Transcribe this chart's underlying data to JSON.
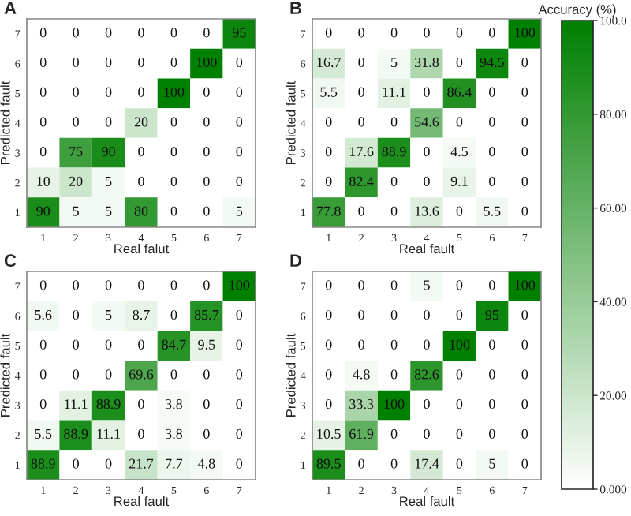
{
  "chart_data": [
    {
      "type": "heatmap",
      "title": "A",
      "xlabel": "Real falut",
      "ylabel": "Predicted fault",
      "categories": [
        "1",
        "2",
        "3",
        "4",
        "5",
        "6",
        "7"
      ],
      "y_categories": [
        "7",
        "6",
        "5",
        "4",
        "3",
        "2",
        "1"
      ],
      "data_labels": true,
      "cells": [
        [
          0,
          0,
          0,
          0,
          0,
          0,
          95
        ],
        [
          0,
          0,
          0,
          0,
          0,
          100,
          0
        ],
        [
          0,
          0,
          0,
          0,
          100,
          0,
          0
        ],
        [
          0,
          0,
          0,
          20,
          0,
          0,
          0
        ],
        [
          0,
          75,
          90,
          0,
          0,
          0,
          0
        ],
        [
          10,
          20,
          5,
          0,
          0,
          0,
          0
        ],
        [
          90,
          5,
          5,
          80,
          0,
          0,
          5
        ]
      ]
    },
    {
      "type": "heatmap",
      "title": "B",
      "xlabel": "Real fault",
      "ylabel": "Predicted fault",
      "categories": [
        "1",
        "2",
        "3",
        "4",
        "5",
        "6",
        "7"
      ],
      "y_categories": [
        "7",
        "6",
        "5",
        "4",
        "3",
        "2",
        "1"
      ],
      "clim": [
        0,
        100
      ],
      "data_labels": true,
      "clabel": "Accuracy (%)",
      "cticks": [
        {
          "value": 0,
          "label": "0.000"
        },
        {
          "value": 20,
          "label": "20.00"
        },
        {
          "value": 40,
          "label": "40.00"
        },
        {
          "value": 60,
          "label": "60.00"
        },
        {
          "value": 80,
          "label": "80.00"
        },
        {
          "value": 100,
          "label": "100.0"
        }
      ],
      "cells": [
        [
          0,
          0,
          0,
          0,
          0,
          0,
          100
        ],
        [
          16.7,
          0,
          5,
          31.8,
          0,
          94.5,
          0
        ],
        [
          5.5,
          0,
          11.1,
          0,
          86.4,
          0,
          0
        ],
        [
          0,
          0,
          0,
          54.6,
          0,
          0,
          0
        ],
        [
          0,
          17.6,
          88.9,
          0,
          4.5,
          0,
          0
        ],
        [
          0,
          82.4,
          0,
          0,
          9.1,
          0,
          0
        ],
        [
          77.8,
          0,
          0,
          13.6,
          0,
          5.5,
          0
        ]
      ]
    },
    {
      "type": "heatmap",
      "title": "C",
      "xlabel": "Real fault",
      "ylabel": "Predicted fault",
      "categories": [
        "1",
        "2",
        "3",
        "4",
        "5",
        "6",
        "7"
      ],
      "y_categories": [
        "7",
        "6",
        "5",
        "4",
        "3",
        "2",
        "1"
      ],
      "data_labels": true,
      "cells": [
        [
          0,
          0,
          0,
          0,
          0,
          0,
          100
        ],
        [
          5.6,
          0,
          5,
          8.7,
          0,
          85.7,
          0
        ],
        [
          0,
          0,
          0,
          0,
          84.7,
          9.5,
          0
        ],
        [
          0,
          0,
          0,
          69.6,
          0,
          0,
          0
        ],
        [
          0,
          11.1,
          88.9,
          0,
          3.8,
          0,
          0
        ],
        [
          5.5,
          88.9,
          11.1,
          0,
          3.8,
          0,
          0
        ],
        [
          88.9,
          0,
          0,
          21.7,
          7.7,
          4.8,
          0
        ]
      ]
    },
    {
      "type": "heatmap",
      "title": "D",
      "xlabel": "Real fault",
      "ylabel": "Predicted fault",
      "categories": [
        "1",
        "2",
        "3",
        "4",
        "5",
        "6",
        "7"
      ],
      "y_categories": [
        "7",
        "6",
        "5",
        "4",
        "3",
        "2",
        "1"
      ],
      "data_labels": true,
      "cells": [
        [
          0,
          0,
          0,
          5,
          0,
          0,
          100
        ],
        [
          0,
          0,
          0,
          0,
          0,
          95,
          0
        ],
        [
          0,
          0,
          0,
          0,
          100,
          0,
          0
        ],
        [
          0,
          4.8,
          0,
          82.6,
          0,
          0,
          0
        ],
        [
          0,
          33.3,
          100,
          0,
          0,
          0,
          0
        ],
        [
          10.5,
          61.9,
          0,
          0,
          0,
          0,
          0
        ],
        [
          89.5,
          0,
          0,
          17.4,
          0,
          5,
          0
        ]
      ]
    }
  ]
}
